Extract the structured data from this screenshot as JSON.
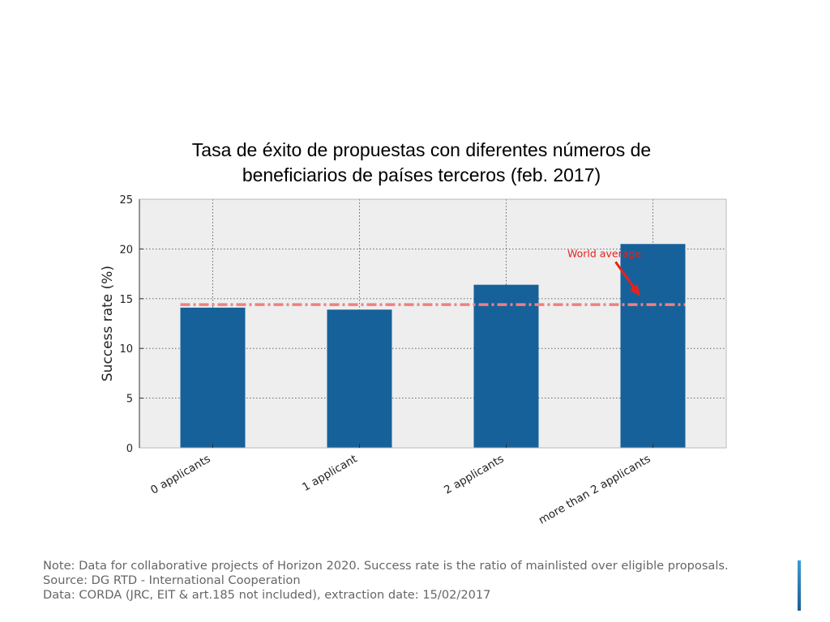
{
  "slide": {
    "title_lines": [
      "Tasa de éxito de propuestas con diferentes números de",
      "beneficiarios de países terceros (feb. 2017)"
    ],
    "footnotes": [
      "Note: Data for collaborative projects of Horizon 2020. Success rate is the ratio of mainlisted over eligible proposals.",
      "Source: DG RTD - International Cooperation",
      "Data: CORDA (JRC, EIT & art.185 not included), extraction date: 15/02/2017"
    ]
  },
  "colors": {
    "bar": "#166199",
    "reference_line": "#f08080",
    "annotation": "#e8201c",
    "plot_background": "#eeeeee",
    "accent": "#2a7cc0"
  },
  "chart_data": {
    "type": "bar",
    "title": "Tasa de éxito de propuestas con diferentes números de beneficiarios de países terceros (feb. 2017)",
    "categories": [
      "0 applicants",
      "1 applicant",
      "2 applicants",
      "more than 2 applicants"
    ],
    "values": [
      14.1,
      13.9,
      16.4,
      20.5
    ],
    "xlabel": "",
    "ylabel": "Success rate (%)",
    "ylim": [
      0,
      25
    ],
    "yticks": [
      0,
      5,
      10,
      15,
      20,
      25
    ],
    "grid": true,
    "reference_line": {
      "label": "World average",
      "value": 14.4
    },
    "annotation": {
      "text": "World average",
      "points_to": "more than 2 applicants"
    }
  }
}
